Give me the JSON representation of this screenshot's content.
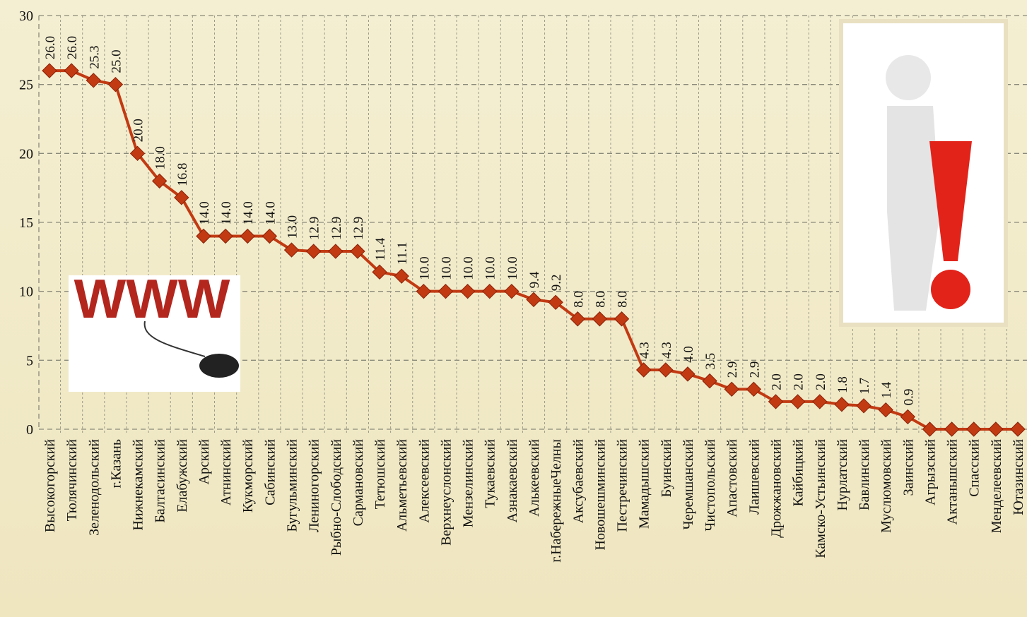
{
  "chart_data": {
    "type": "line",
    "categories": [
      "Высокогорский",
      "Тюлячинский",
      "Зеленодольский",
      "г.Казань",
      "Нижнекамский",
      "Балтасинский",
      "Елабужский",
      "Арский",
      "Атнинский",
      "Кукморский",
      "Сабинский",
      "Бугульминский",
      "Лениногорский",
      "Рыбно-Слободский",
      "Сармановский",
      "Тетюшский",
      "Альметьевский",
      "Алексеевский",
      "Верхнеуслонский",
      "Мензелинский",
      "Тукаевский",
      "Азнакаевский",
      "Алькеевский",
      "г.НабережныеЧелны",
      "Аксубаевский",
      "Новошешминский",
      "Пестречинский",
      "Мамадышский",
      "Буинский",
      "Черемшанский",
      "Чистопольский",
      "Апастовский",
      "Лаишевский",
      "Дрожжановский",
      "Кайбицкий",
      "Камско-Устьинский",
      "Нурлатский",
      "Бавлинский",
      "Муслюмовский",
      "Заинский",
      "Агрызский",
      "Актанышский",
      "Спасский",
      "Менделеевский",
      "Ютазинский"
    ],
    "values": [
      26,
      26,
      25.3,
      25,
      20,
      18,
      16.8,
      14,
      14,
      14,
      14,
      13,
      12.9,
      12.9,
      12.9,
      11.4,
      11.1,
      10,
      10,
      10,
      10,
      10,
      9.4,
      9.2,
      8,
      8,
      8,
      4.3,
      4.3,
      4,
      3.5,
      2.9,
      2.9,
      2,
      2,
      2,
      1.8,
      1.7,
      1.4,
      0.9,
      0,
      0,
      0,
      0,
      0
    ],
    "value_labels": [
      "26.0",
      "26.0",
      "25.3",
      "25.0",
      "20.0",
      "18.0",
      "16.8",
      "14.0",
      "14.0",
      "14.0",
      "14.0",
      "13.0",
      "12.9",
      "12.9",
      "12.9",
      "11.4",
      "11.1",
      "10.0",
      "10.0",
      "10.0",
      "10.0",
      "10.0",
      "9.4",
      "9.2",
      "8.0",
      "8.0",
      "8.0",
      "4.3",
      "4.3",
      "4.0",
      "3.5",
      "2.9",
      "2.9",
      "2.0",
      "2.0",
      "2.0",
      "1.8",
      "1.7",
      "1.4",
      "0.9",
      null,
      null,
      null,
      null,
      null
    ],
    "color": "#c23a12",
    "ylim": [
      0,
      30
    ],
    "yticks": [
      0,
      5,
      10,
      15,
      20,
      25,
      30
    ],
    "grid": true,
    "decoration_text": "WWW"
  }
}
